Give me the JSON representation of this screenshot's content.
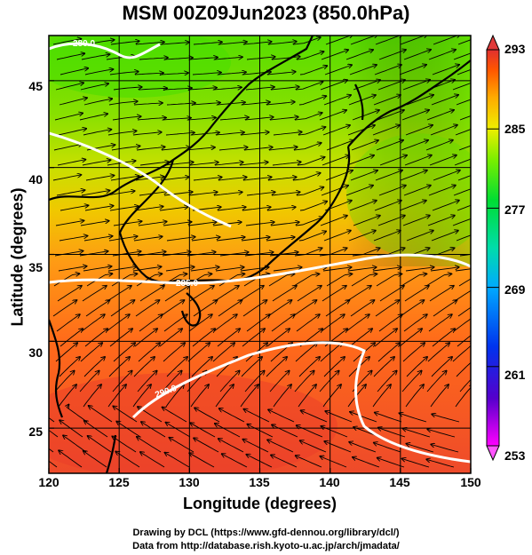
{
  "title": "MSM 00Z09Jun2023 (850.0hPa)",
  "x_axis": {
    "label": "Longitude (degrees)",
    "ticks": [
      "120",
      "125",
      "130",
      "135",
      "140",
      "145",
      "150"
    ],
    "range": [
      120,
      150
    ]
  },
  "y_axis": {
    "label": "Latitude  (degrees)",
    "ticks": [
      "45",
      "40",
      "35",
      "30",
      "25"
    ],
    "range": [
      22.4,
      47.6
    ]
  },
  "colorbar": {
    "ticks": [
      "293",
      "285",
      "277",
      "269",
      "261",
      "253"
    ],
    "range": [
      253,
      293
    ],
    "colors": [
      "#ff00ff",
      "#3300cc",
      "#0044ff",
      "#00ccff",
      "#00dd66",
      "#66ee00",
      "#ddee00",
      "#ffaa00",
      "#ff5500",
      "#e03030"
    ]
  },
  "contour_labels": [
    "280.0",
    "285.0",
    "290.0"
  ],
  "credits": {
    "line1": "Drawing by DCL (https://www.gfd-dennou.org/library/dcl/)",
    "line2": "Data from http://database.rish.kyoto-u.ac.jp/arch/jmadata/"
  },
  "colors": {
    "field_cold": "#55dd00",
    "field_mid": "#ddd800",
    "field_warm": "#ff7a1a",
    "field_hot": "#ee4422",
    "streamline": "#000000",
    "contour": "#ffffff",
    "coastline": "#000000"
  }
}
